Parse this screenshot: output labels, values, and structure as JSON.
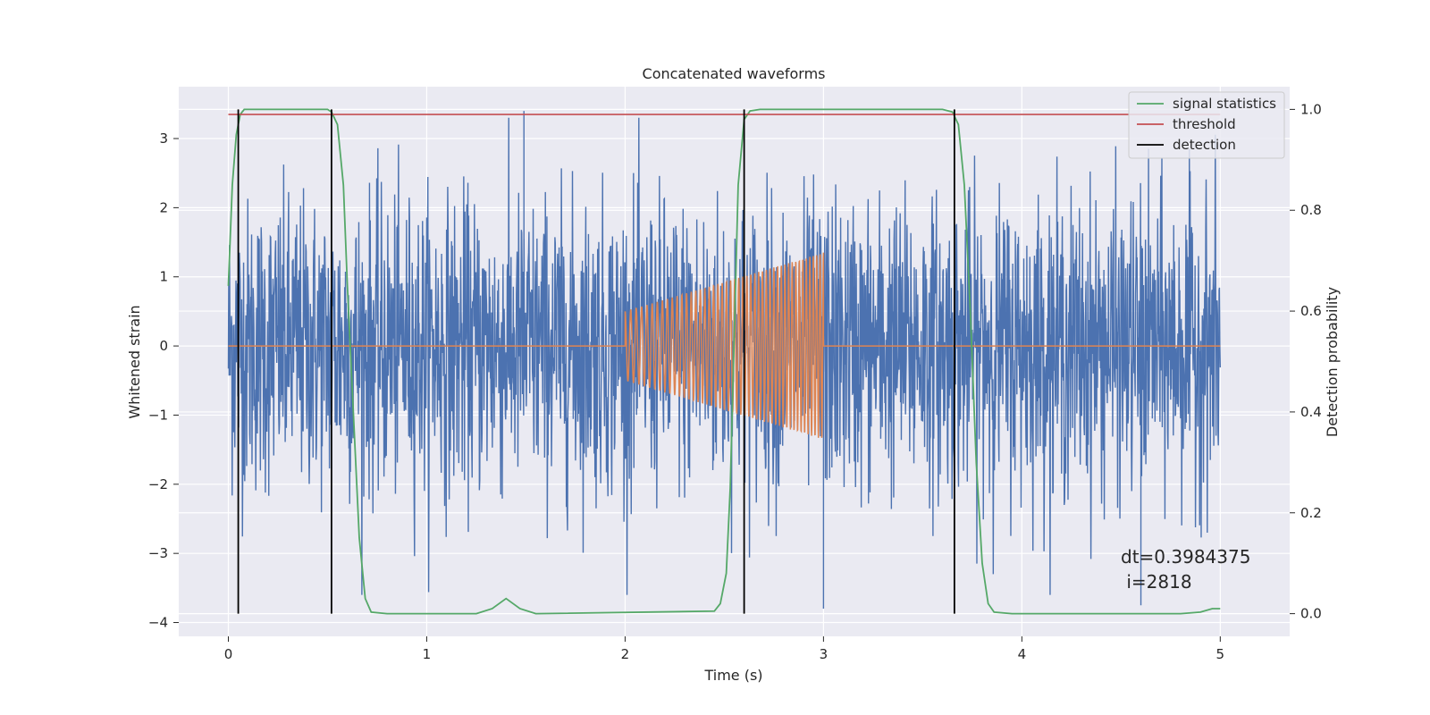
{
  "chart_data": {
    "type": "line",
    "title": "Concatenated waveforms",
    "xlabel": "Time (s)",
    "ylabel": "Whitened strain",
    "y2label": "Detection probability",
    "xlim": [
      -0.25,
      5.35
    ],
    "ylim": [
      -4.2,
      3.75
    ],
    "y2lim": [
      -0.045,
      1.045
    ],
    "x_ticks": [
      "0",
      "1",
      "2",
      "3",
      "4",
      "5"
    ],
    "y_ticks": [
      "−4",
      "−3",
      "−2",
      "−1",
      "0",
      "1",
      "2",
      "3"
    ],
    "y2_ticks": [
      "0.0",
      "0.2",
      "0.4",
      "0.6",
      "0.8",
      "1.0"
    ],
    "grid": true,
    "legend_position": "top-right",
    "colors": {
      "background": "#eaeaf2",
      "noise": "#4c72b0",
      "injected": "#dd8452",
      "signal_statistics": "#55a868",
      "threshold": "#c44e52",
      "detection": "#000000"
    },
    "series": [
      {
        "name": "",
        "role": "noise",
        "description_values": "whitened noisy strain, roughly Gaussian, amplitude mostly within -3.5..3.5",
        "x_range": [
          0,
          5
        ],
        "peak_values": [
          3.4,
          -3.8
        ]
      },
      {
        "name": "",
        "role": "injected",
        "x_range": [
          0,
          5
        ],
        "chirp_start": 2.0,
        "chirp_end": 3.0,
        "chirp_amplitude_start": 0.5,
        "chirp_amplitude_end": 1.35
      },
      {
        "name": "signal statistics",
        "axis": "right",
        "x": [
          0,
          0.02,
          0.04,
          0.06,
          0.08,
          0.1,
          0.5,
          0.52,
          0.55,
          0.58,
          0.6,
          0.63,
          0.66,
          0.69,
          0.72,
          0.8,
          1.25,
          1.33,
          1.4,
          1.47,
          1.55,
          2.45,
          2.48,
          2.51,
          2.53,
          2.55,
          2.57,
          2.6,
          2.63,
          2.68,
          3.6,
          3.65,
          3.68,
          3.71,
          3.74,
          3.77,
          3.8,
          3.83,
          3.86,
          3.95,
          4.8,
          4.9,
          4.96,
          5.0
        ],
        "y": [
          0.65,
          0.85,
          0.95,
          0.99,
          1.0,
          1.0,
          1.0,
          0.995,
          0.97,
          0.85,
          0.65,
          0.4,
          0.15,
          0.03,
          0.003,
          0.0,
          0.0,
          0.01,
          0.03,
          0.01,
          0.0,
          0.005,
          0.02,
          0.08,
          0.25,
          0.55,
          0.85,
          0.98,
          0.997,
          1.0,
          1.0,
          0.995,
          0.97,
          0.85,
          0.6,
          0.3,
          0.1,
          0.02,
          0.003,
          0.0,
          0.0,
          0.003,
          0.01,
          0.01
        ]
      },
      {
        "name": "threshold",
        "axis": "right",
        "x": [
          0,
          5
        ],
        "y": [
          0.99,
          0.99
        ]
      },
      {
        "name": "detection",
        "axis": "right",
        "type": "vlines",
        "x": [
          0.05,
          0.52,
          2.6,
          3.66
        ],
        "y_range": [
          0.0,
          1.0
        ]
      }
    ],
    "annotations": [
      "dt=0.3984375",
      " i=2818"
    ]
  }
}
